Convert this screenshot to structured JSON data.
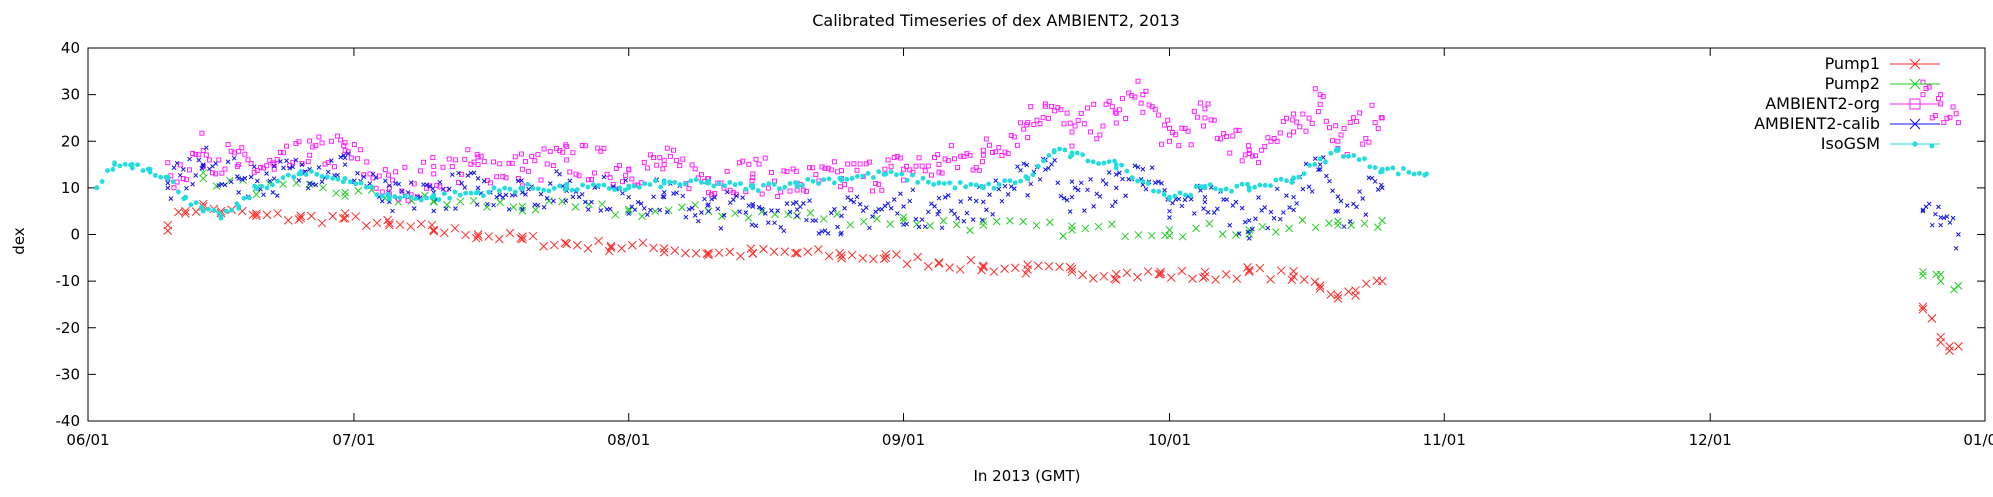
{
  "chart_data": {
    "type": "scatter",
    "title": "Calibrated Timeseries of dex AMBIENT2, 2013",
    "xlabel": "In 2013 (GMT)",
    "ylabel": "dex",
    "xlim": [
      "2013-06-01",
      "2014-01-01"
    ],
    "ylim": [
      -40,
      40
    ],
    "x_ticks": [
      "06/01",
      "07/01",
      "08/01",
      "09/01",
      "10/01",
      "11/01",
      "12/01",
      "01/01"
    ],
    "y_ticks": [
      -40,
      -30,
      -20,
      -10,
      0,
      10,
      20,
      30,
      40
    ],
    "grid": false,
    "legend_position": "top-right",
    "series": [
      {
        "name": "Pump1",
        "color": "#ff2a2a",
        "marker": "x",
        "x": [
          "2013-06-10",
          "2013-06-12",
          "2013-06-14",
          "2013-06-16",
          "2013-06-20",
          "2013-06-25",
          "2013-06-30",
          "2013-07-05",
          "2013-07-10",
          "2013-07-15",
          "2013-07-20",
          "2013-07-25",
          "2013-07-30",
          "2013-08-05",
          "2013-08-10",
          "2013-08-15",
          "2013-08-20",
          "2013-08-25",
          "2013-08-30",
          "2013-09-05",
          "2013-09-10",
          "2013-09-15",
          "2013-09-20",
          "2013-09-25",
          "2013-09-30",
          "2013-10-05",
          "2013-10-10",
          "2013-10-15",
          "2013-10-18",
          "2013-10-20",
          "2013-10-22",
          "2013-10-25",
          "2013-12-25",
          "2013-12-26",
          "2013-12-27",
          "2013-12-28",
          "2013-12-29"
        ],
        "y": [
          2,
          5,
          6,
          5,
          4,
          3.5,
          3.5,
          2,
          1,
          0,
          -1,
          -2,
          -2.5,
          -3,
          -4,
          -4,
          -4,
          -4.5,
          -5,
          -6,
          -7,
          -7.5,
          -8,
          -8.5,
          -8.5,
          -9,
          -8,
          -9,
          -11,
          -13,
          -12,
          -10,
          -16,
          -18,
          -22,
          -24,
          -24
        ]
      },
      {
        "name": "Pump2",
        "color": "#22cc22",
        "marker": "x",
        "x": [
          "2013-06-14",
          "2013-06-20",
          "2013-06-30",
          "2013-07-10",
          "2013-07-20",
          "2013-08-01",
          "2013-08-10",
          "2013-08-20",
          "2013-09-01",
          "2013-09-10",
          "2013-09-20",
          "2013-10-01",
          "2013-10-10",
          "2013-10-20",
          "2013-10-25",
          "2013-12-25",
          "2013-12-27",
          "2013-12-29"
        ],
        "y": [
          12,
          10,
          9,
          7,
          6,
          5,
          5,
          4,
          3,
          2,
          1,
          1,
          1,
          2,
          3,
          -8,
          -10,
          -11
        ]
      },
      {
        "name": "AMBIENT2-org",
        "color": "#ff22ff",
        "marker": "square",
        "x": [
          "2013-06-10",
          "2013-06-14",
          "2013-06-18",
          "2013-06-22",
          "2013-06-26",
          "2013-06-30",
          "2013-07-05",
          "2013-07-10",
          "2013-07-15",
          "2013-07-20",
          "2013-07-25",
          "2013-08-01",
          "2013-08-05",
          "2013-08-10",
          "2013-08-15",
          "2013-08-20",
          "2013-08-25",
          "2013-09-01",
          "2013-09-05",
          "2013-09-10",
          "2013-09-15",
          "2013-09-17",
          "2013-09-20",
          "2013-09-25",
          "2013-09-28",
          "2013-10-01",
          "2013-10-05",
          "2013-10-10",
          "2013-10-15",
          "2013-10-18",
          "2013-10-20",
          "2013-10-25",
          "2013-12-25",
          "2013-12-27",
          "2013-12-29"
        ],
        "y": [
          12,
          18,
          15,
          14,
          17,
          18,
          10,
          13,
          15,
          14,
          16,
          14,
          15,
          12,
          13,
          11,
          12,
          14,
          15,
          17,
          24,
          28,
          22,
          26,
          30,
          20,
          25,
          18,
          22,
          30,
          20,
          25,
          30,
          28,
          24
        ]
      },
      {
        "name": "AMBIENT2-calib",
        "color": "#1111ee",
        "marker": "x",
        "x": [
          "2013-06-10",
          "2013-06-14",
          "2013-06-18",
          "2013-06-22",
          "2013-06-26",
          "2013-06-30",
          "2013-07-05",
          "2013-07-10",
          "2013-07-15",
          "2013-07-20",
          "2013-07-25",
          "2013-08-01",
          "2013-08-05",
          "2013-08-10",
          "2013-08-15",
          "2013-08-20",
          "2013-08-25",
          "2013-09-01",
          "2013-09-05",
          "2013-09-10",
          "2013-09-15",
          "2013-09-17",
          "2013-09-20",
          "2013-09-25",
          "2013-09-28",
          "2013-10-01",
          "2013-10-05",
          "2013-10-10",
          "2013-10-15",
          "2013-10-18",
          "2013-10-20",
          "2013-10-25",
          "2013-12-25",
          "2013-12-27",
          "2013-12-29"
        ],
        "y": [
          10,
          15,
          12,
          12,
          14,
          15,
          7,
          9,
          10,
          9,
          10,
          8,
          8,
          5,
          6,
          4,
          4,
          6,
          5,
          7,
          12,
          16,
          8,
          10,
          14,
          5,
          8,
          3,
          8,
          15,
          5,
          10,
          5,
          2,
          0
        ]
      },
      {
        "name": "IsoGSM",
        "color": "#22dddd",
        "marker": "dot",
        "x": [
          "2013-06-02",
          "2013-06-04",
          "2013-06-06",
          "2013-06-08",
          "2013-06-10",
          "2013-06-12",
          "2013-06-14",
          "2013-06-16",
          "2013-06-18",
          "2013-06-20",
          "2013-06-25",
          "2013-06-30",
          "2013-07-05",
          "2013-07-10",
          "2013-07-15",
          "2013-07-20",
          "2013-07-25",
          "2013-08-01",
          "2013-08-05",
          "2013-08-10",
          "2013-08-15",
          "2013-08-20",
          "2013-08-25",
          "2013-08-30",
          "2013-09-05",
          "2013-09-10",
          "2013-09-15",
          "2013-09-18",
          "2013-09-20",
          "2013-09-25",
          "2013-10-01",
          "2013-10-05",
          "2013-10-10",
          "2013-10-15",
          "2013-10-20",
          "2013-10-25",
          "2013-10-30",
          "2013-12-26"
        ],
        "y": [
          10,
          15,
          15,
          14,
          12,
          8,
          5,
          4,
          6,
          10,
          13,
          12,
          8,
          8,
          9,
          10,
          10,
          10,
          11,
          11,
          10,
          11,
          12,
          13,
          11,
          10,
          12,
          18,
          17,
          15,
          8,
          10,
          10,
          12,
          18,
          14,
          13,
          19
        ]
      }
    ]
  }
}
